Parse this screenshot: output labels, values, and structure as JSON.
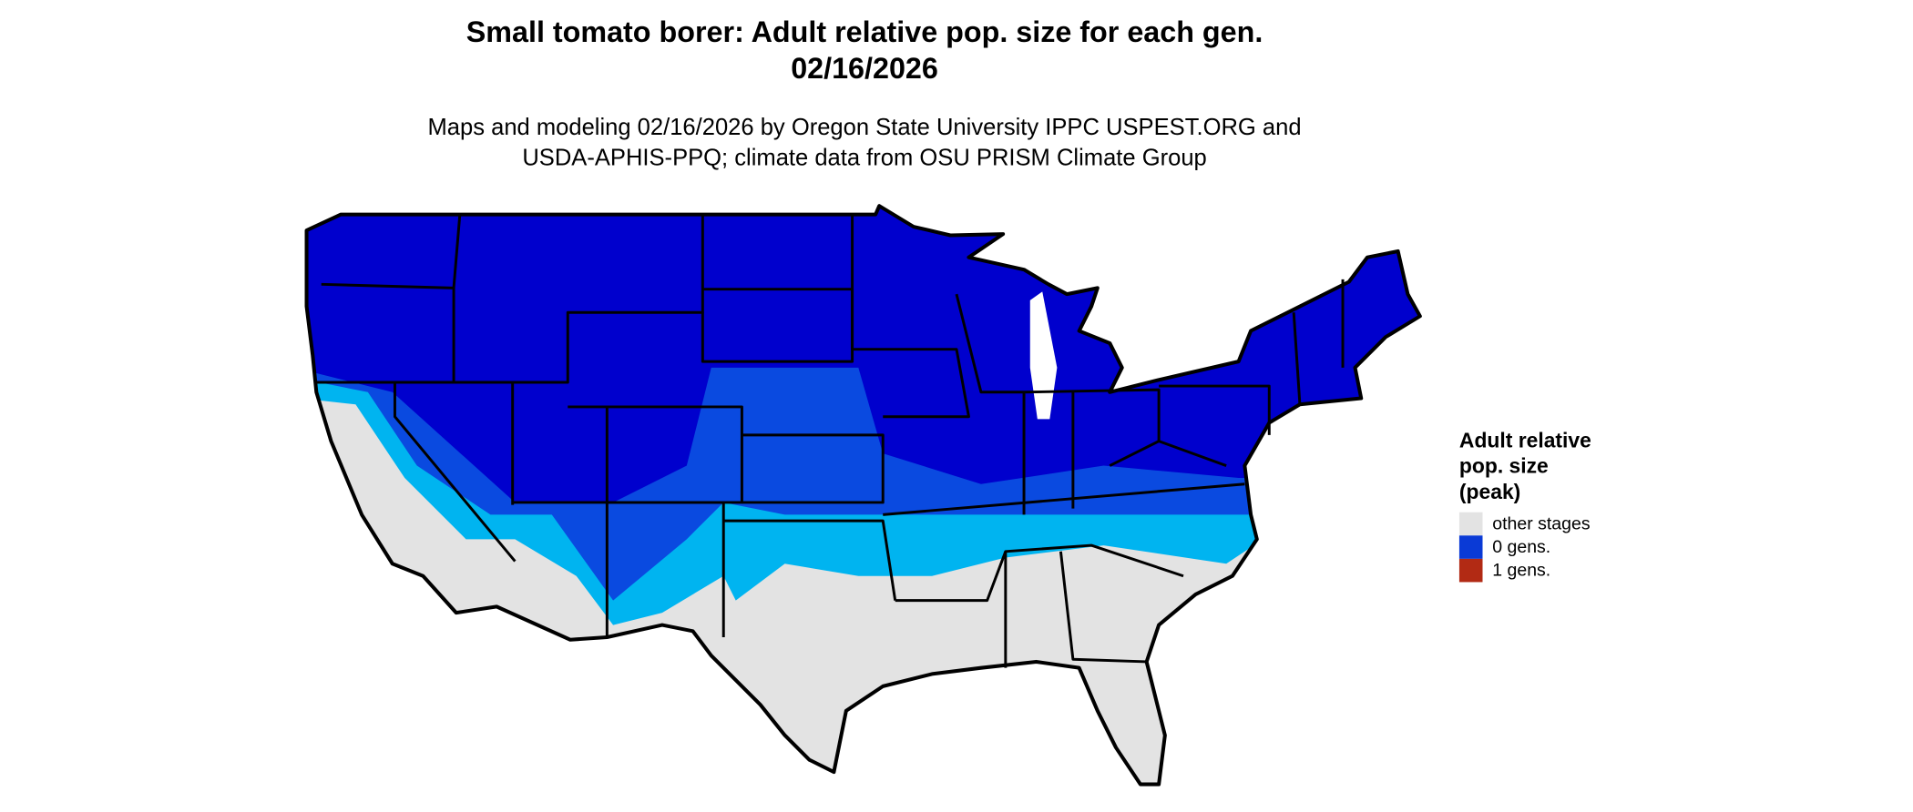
{
  "title": [
    "Small tomato borer: Adult relative pop. size for each gen.",
    "02/16/2026"
  ],
  "subtitle": [
    "Maps and modeling 02/16/2026 by Oregon State University IPPC USPEST.ORG and",
    "USDA-APHIS-PPQ; climate data from OSU PRISM Climate Group"
  ],
  "legend": {
    "title": [
      "Adult relative",
      "pop. size",
      "(peak)"
    ],
    "items": [
      {
        "label": "other stages",
        "color": "#e3e3e3"
      },
      {
        "label": "0 gens.",
        "color": "#0a3ad6"
      },
      {
        "label": "1 gens.",
        "color": "#b22a14"
      }
    ]
  }
}
